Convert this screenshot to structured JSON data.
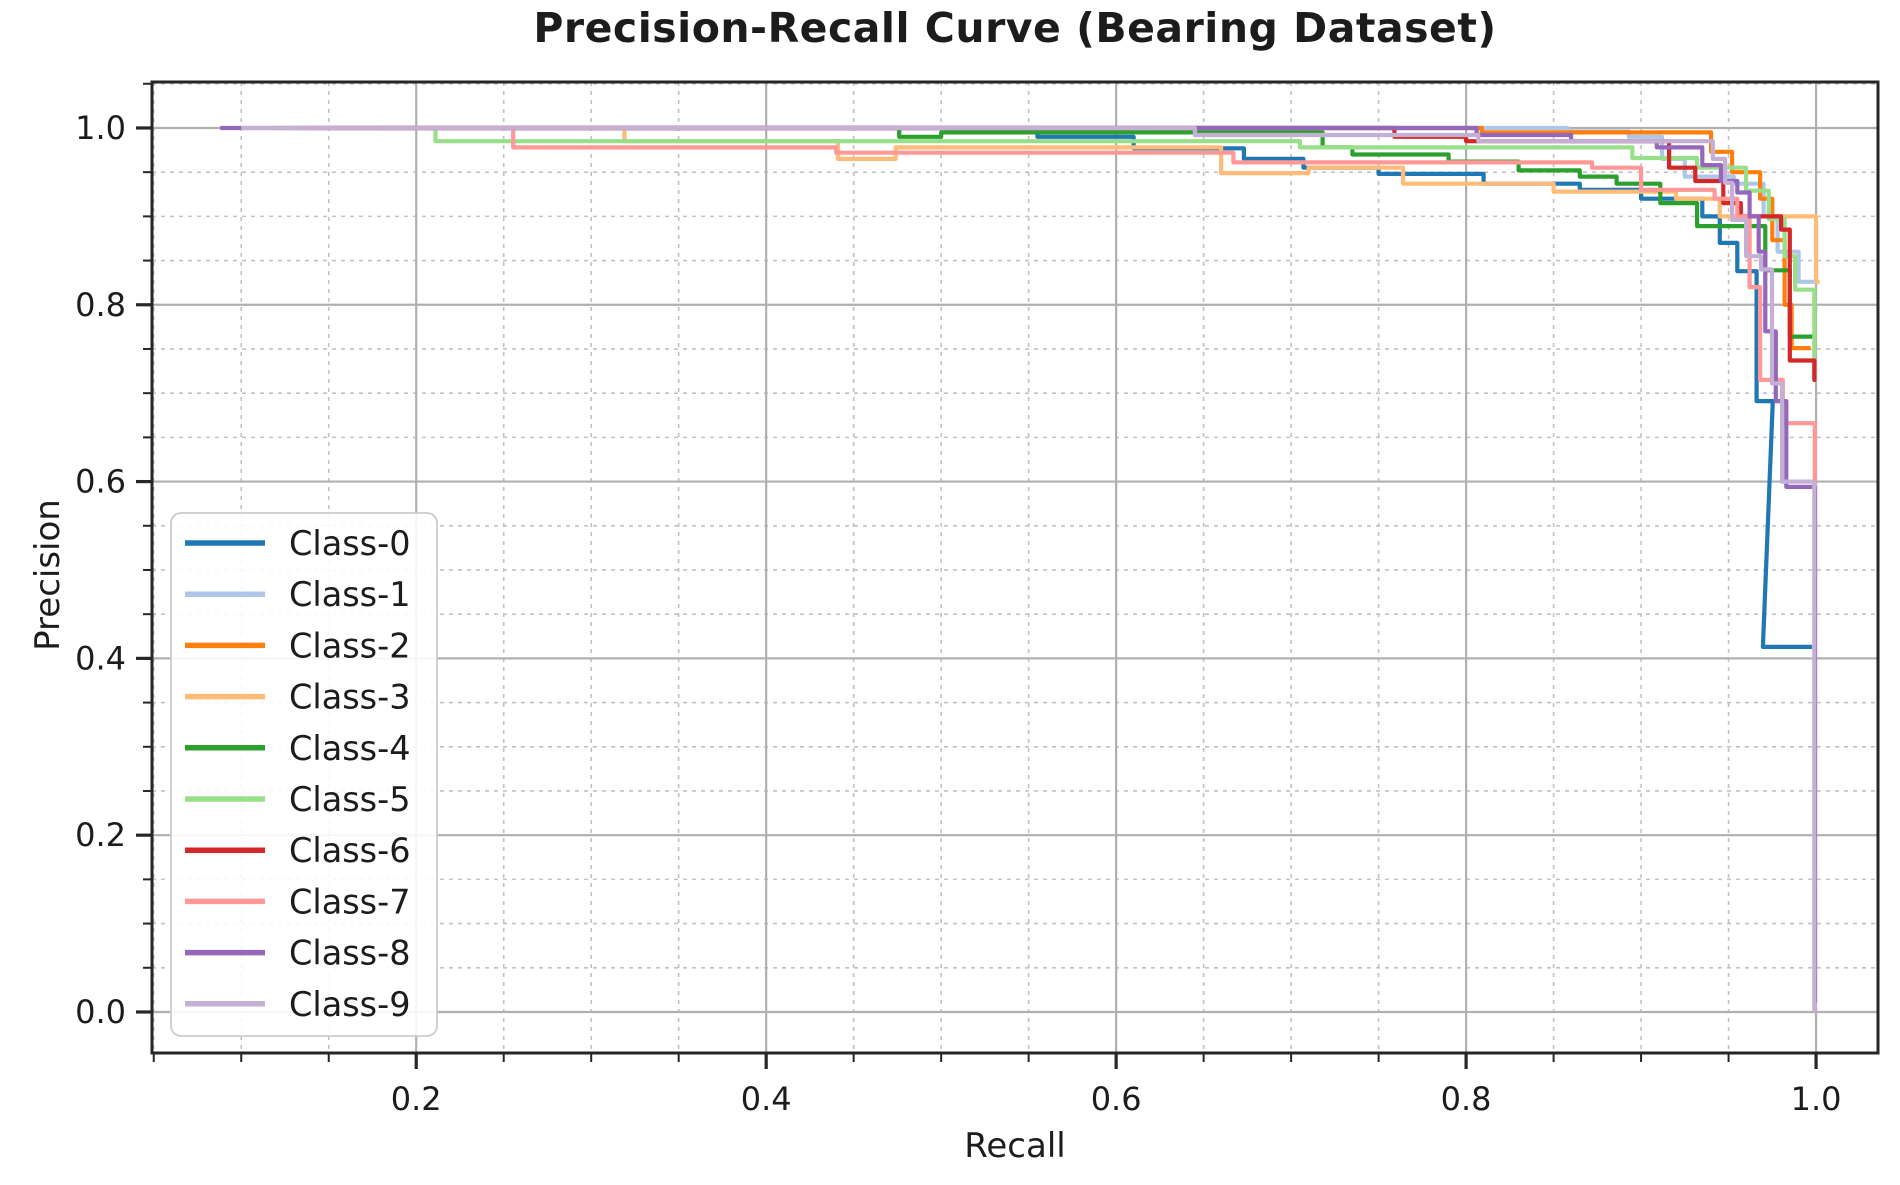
{
  "chart_data": {
    "type": "line",
    "subtype": "precision-recall-step-curves",
    "title": "Precision-Recall Curve (Bearing Dataset)",
    "xlabel": "Recall",
    "ylabel": "Precision",
    "xlim": [
      0.049,
      1.0354
    ],
    "ylim": [
      -0.0464,
      1.052
    ],
    "x_major_ticks": [
      0.2,
      0.4,
      0.6,
      0.8,
      1.0
    ],
    "y_major_ticks": [
      0.0,
      0.2,
      0.4,
      0.6,
      0.8,
      1.0
    ],
    "minor_tick_step": 0.05,
    "grid": {
      "major": {
        "style": "solid",
        "color": "#b0b0b0"
      },
      "minor": {
        "style": "dashed",
        "color": "#c2c2c2"
      }
    },
    "legend": {
      "position": "lower-left",
      "border_color": "#cccccc",
      "background": "#ffffff"
    },
    "text_color": "#1c1c1c",
    "spine_color": "#262626",
    "series": [
      {
        "name": "Class-0",
        "color": "#1f77b4",
        "points": [
          [
            0.25,
            1.0
          ],
          [
            0.555,
            1.0
          ],
          [
            0.555,
            0.99
          ],
          [
            0.61,
            0.99
          ],
          [
            0.61,
            0.977
          ],
          [
            0.673,
            0.977
          ],
          [
            0.673,
            0.965
          ],
          [
            0.707,
            0.965
          ],
          [
            0.707,
            0.955
          ],
          [
            0.75,
            0.955
          ],
          [
            0.75,
            0.948
          ],
          [
            0.81,
            0.948
          ],
          [
            0.81,
            0.937
          ],
          [
            0.865,
            0.937
          ],
          [
            0.865,
            0.93
          ],
          [
            0.9,
            0.93
          ],
          [
            0.9,
            0.92
          ],
          [
            0.935,
            0.92
          ],
          [
            0.935,
            0.9
          ],
          [
            0.945,
            0.9
          ],
          [
            0.945,
            0.87
          ],
          [
            0.955,
            0.87
          ],
          [
            0.955,
            0.838
          ],
          [
            0.966,
            0.838
          ],
          [
            0.966,
            0.691
          ],
          [
            0.9753,
            0.691
          ],
          [
            0.9696,
            0.413
          ],
          [
            0.9977,
            0.413
          ]
        ]
      },
      {
        "name": "Class-1",
        "color": "#aec7e8",
        "points": [
          [
            0.3,
            1.0
          ],
          [
            0.858,
            1.0
          ],
          [
            0.858,
            0.996
          ],
          [
            0.893,
            0.996
          ],
          [
            0.893,
            0.99
          ],
          [
            0.912,
            0.99
          ],
          [
            0.912,
            0.965
          ],
          [
            0.925,
            0.965
          ],
          [
            0.925,
            0.945
          ],
          [
            0.953,
            0.945
          ],
          [
            0.953,
            0.937
          ],
          [
            0.97,
            0.937
          ],
          [
            0.97,
            0.9
          ],
          [
            0.978,
            0.9
          ],
          [
            0.978,
            0.86
          ],
          [
            0.99,
            0.86
          ],
          [
            0.99,
            0.826
          ],
          [
            1.0,
            0.826
          ]
        ]
      },
      {
        "name": "Class-2",
        "color": "#ff7f0e",
        "points": [
          [
            0.15,
            1.0
          ],
          [
            0.809,
            1.0
          ],
          [
            0.809,
            0.995
          ],
          [
            0.94,
            0.995
          ],
          [
            0.94,
            0.973
          ],
          [
            0.952,
            0.973
          ],
          [
            0.952,
            0.95
          ],
          [
            0.968,
            0.95
          ],
          [
            0.968,
            0.92
          ],
          [
            0.975,
            0.92
          ],
          [
            0.975,
            0.873
          ],
          [
            0.982,
            0.873
          ],
          [
            0.982,
            0.8
          ],
          [
            0.986,
            0.8
          ],
          [
            0.986,
            0.751
          ],
          [
            0.997,
            0.751
          ]
        ]
      },
      {
        "name": "Class-3",
        "color": "#ffbb78",
        "points": [
          [
            0.12,
            1.0
          ],
          [
            0.319,
            1.0
          ],
          [
            0.319,
            0.985
          ],
          [
            0.441,
            0.985
          ],
          [
            0.441,
            0.965
          ],
          [
            0.474,
            0.965
          ],
          [
            0.474,
            0.978
          ],
          [
            0.66,
            0.978
          ],
          [
            0.66,
            0.949
          ],
          [
            0.71,
            0.949
          ],
          [
            0.71,
            0.955
          ],
          [
            0.764,
            0.955
          ],
          [
            0.764,
            0.937
          ],
          [
            0.85,
            0.937
          ],
          [
            0.85,
            0.928
          ],
          [
            0.92,
            0.928
          ],
          [
            0.92,
            0.92
          ],
          [
            0.945,
            0.92
          ],
          [
            0.945,
            0.9
          ],
          [
            1.0,
            0.9
          ],
          [
            1.0,
            0.826
          ],
          [
            1.002,
            0.826
          ]
        ]
      },
      {
        "name": "Class-4",
        "color": "#2ca02c",
        "points": [
          [
            0.18,
            1.0
          ],
          [
            0.476,
            1.0
          ],
          [
            0.476,
            0.99
          ],
          [
            0.5,
            0.99
          ],
          [
            0.5,
            0.995
          ],
          [
            0.718,
            0.995
          ],
          [
            0.718,
            0.978
          ],
          [
            0.735,
            0.978
          ],
          [
            0.735,
            0.97
          ],
          [
            0.79,
            0.97
          ],
          [
            0.79,
            0.962
          ],
          [
            0.83,
            0.962
          ],
          [
            0.83,
            0.952
          ],
          [
            0.865,
            0.952
          ],
          [
            0.865,
            0.945
          ],
          [
            0.886,
            0.945
          ],
          [
            0.886,
            0.937
          ],
          [
            0.911,
            0.937
          ],
          [
            0.911,
            0.915
          ],
          [
            0.932,
            0.915
          ],
          [
            0.932,
            0.889
          ],
          [
            0.971,
            0.889
          ],
          [
            0.971,
            0.839
          ],
          [
            0.985,
            0.839
          ],
          [
            0.985,
            0.764
          ],
          [
            1.0,
            0.764
          ]
        ]
      },
      {
        "name": "Class-5",
        "color": "#98df8a",
        "points": [
          [
            0.18,
            1.0
          ],
          [
            0.211,
            1.0
          ],
          [
            0.211,
            0.985
          ],
          [
            0.705,
            0.985
          ],
          [
            0.705,
            0.978
          ],
          [
            0.895,
            0.978
          ],
          [
            0.895,
            0.966
          ],
          [
            0.932,
            0.966
          ],
          [
            0.932,
            0.955
          ],
          [
            0.96,
            0.955
          ],
          [
            0.96,
            0.929
          ],
          [
            0.973,
            0.929
          ],
          [
            0.973,
            0.897
          ],
          [
            0.982,
            0.897
          ],
          [
            0.982,
            0.855
          ],
          [
            0.988,
            0.855
          ],
          [
            0.988,
            0.817
          ],
          [
            0.999,
            0.817
          ],
          [
            0.999,
            0.741
          ],
          [
            1.0,
            0.741
          ]
        ]
      },
      {
        "name": "Class-6",
        "color": "#d62728",
        "points": [
          [
            0.14,
            1.0
          ],
          [
            0.759,
            1.0
          ],
          [
            0.759,
            0.99
          ],
          [
            0.8,
            0.99
          ],
          [
            0.8,
            0.985
          ],
          [
            0.916,
            0.985
          ],
          [
            0.916,
            0.955
          ],
          [
            0.931,
            0.955
          ],
          [
            0.931,
            0.94
          ],
          [
            0.947,
            0.94
          ],
          [
            0.947,
            0.915
          ],
          [
            0.957,
            0.915
          ],
          [
            0.957,
            0.9
          ],
          [
            0.98,
            0.9
          ],
          [
            0.98,
            0.885
          ],
          [
            0.985,
            0.885
          ],
          [
            0.985,
            0.737
          ],
          [
            0.999,
            0.737
          ],
          [
            0.999,
            0.715
          ],
          [
            1.0,
            0.715
          ]
        ]
      },
      {
        "name": "Class-7",
        "color": "#ff9896",
        "points": [
          [
            0.13,
            1.0
          ],
          [
            0.2554,
            1.0
          ],
          [
            0.2554,
            0.978
          ],
          [
            0.44,
            0.978
          ],
          [
            0.44,
            0.972
          ],
          [
            0.667,
            0.972
          ],
          [
            0.667,
            0.961
          ],
          [
            0.872,
            0.961
          ],
          [
            0.872,
            0.955
          ],
          [
            0.9,
            0.955
          ],
          [
            0.9,
            0.93
          ],
          [
            0.942,
            0.93
          ],
          [
            0.942,
            0.92
          ],
          [
            0.955,
            0.92
          ],
          [
            0.955,
            0.9
          ],
          [
            0.962,
            0.9
          ],
          [
            0.962,
            0.82
          ],
          [
            0.968,
            0.82
          ],
          [
            0.968,
            0.715
          ],
          [
            0.981,
            0.715
          ],
          [
            0.981,
            0.666
          ],
          [
            0.9993,
            0.666
          ],
          [
            0.9993,
            0.002
          ]
        ]
      },
      {
        "name": "Class-8",
        "color": "#9467bd",
        "points": [
          [
            0.088,
            1.0
          ],
          [
            0.806,
            1.0
          ],
          [
            0.806,
            0.992
          ],
          [
            0.86,
            0.992
          ],
          [
            0.86,
            0.985
          ],
          [
            0.909,
            0.985
          ],
          [
            0.909,
            0.978
          ],
          [
            0.935,
            0.978
          ],
          [
            0.935,
            0.958
          ],
          [
            0.9457,
            0.958
          ],
          [
            0.9457,
            0.94
          ],
          [
            0.955,
            0.94
          ],
          [
            0.955,
            0.927
          ],
          [
            0.962,
            0.927
          ],
          [
            0.962,
            0.9
          ],
          [
            0.9672,
            0.9
          ],
          [
            0.9672,
            0.86
          ],
          [
            0.971,
            0.86
          ],
          [
            0.971,
            0.77
          ],
          [
            0.977,
            0.77
          ],
          [
            0.977,
            0.691
          ],
          [
            0.983,
            0.691
          ],
          [
            0.983,
            0.594
          ],
          [
            0.9994,
            0.594
          ],
          [
            0.9994,
            0.01
          ]
        ]
      },
      {
        "name": "Class-9",
        "color": "#c5b0d5",
        "points": [
          [
            0.1,
            1.0
          ],
          [
            0.645,
            1.0
          ],
          [
            0.645,
            0.992
          ],
          [
            0.807,
            0.992
          ],
          [
            0.807,
            0.985
          ],
          [
            0.941,
            0.985
          ],
          [
            0.941,
            0.965
          ],
          [
            0.948,
            0.965
          ],
          [
            0.948,
            0.938
          ],
          [
            0.952,
            0.938
          ],
          [
            0.952,
            0.896
          ],
          [
            0.96,
            0.896
          ],
          [
            0.96,
            0.855
          ],
          [
            0.9685,
            0.855
          ],
          [
            0.9685,
            0.84
          ],
          [
            0.9748,
            0.84
          ],
          [
            0.9748,
            0.711
          ],
          [
            0.9806,
            0.711
          ],
          [
            0.9806,
            0.6
          ],
          [
            0.999,
            0.6
          ],
          [
            0.999,
            0.002
          ],
          [
            1.0,
            0.002
          ]
        ]
      }
    ]
  }
}
